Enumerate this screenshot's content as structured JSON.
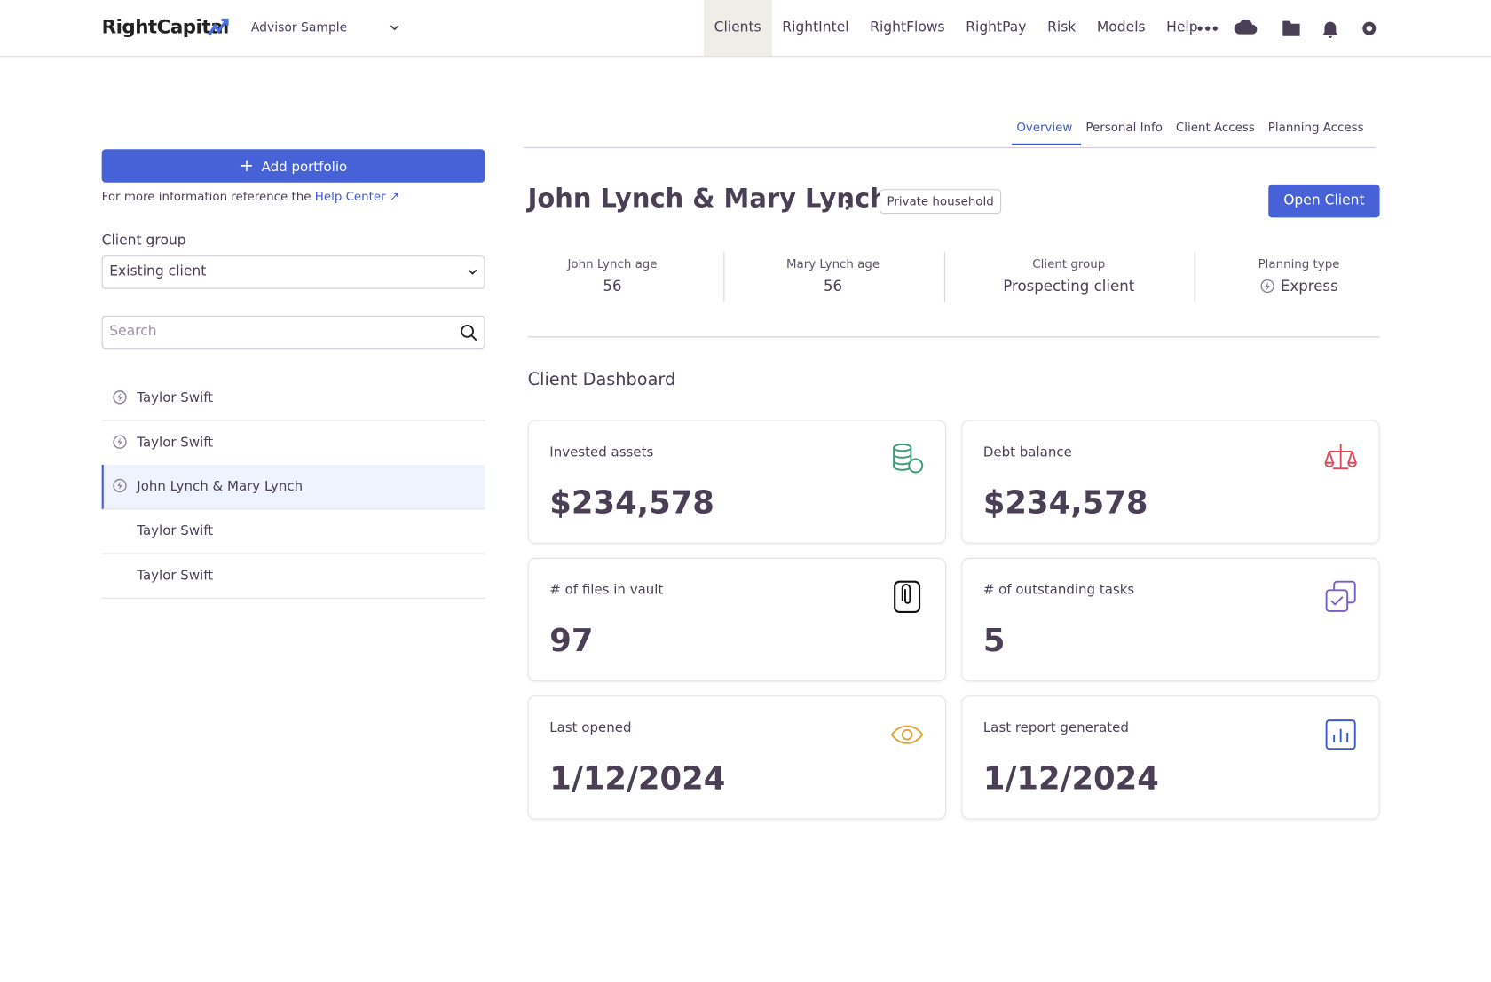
{
  "nav": {
    "logo": "RightCapital",
    "advisor": "Advisor Sample",
    "items": [
      "Clients",
      "RightIntel",
      "RightFlows",
      "RightPay",
      "Risk",
      "Models",
      "Help"
    ]
  },
  "tabs": [
    "Overview",
    "Personal Info",
    "Client Access",
    "Planning Access"
  ],
  "sidebar": {
    "add_button": "Add portfolio",
    "help_text": "For more information reference the",
    "help_link": "Help Center",
    "client_group_label": "Client group",
    "client_group_value": "Existing client",
    "search_placeholder": "Search",
    "clients": [
      "Taylor Swift",
      "Taylor Swift",
      "John Lynch & Mary Lynch",
      "Taylor Swift",
      "Taylor Swift"
    ]
  },
  "client": {
    "name": "John Lynch & Mary Lynch",
    "badge": "Private household",
    "open_button": "Open Client",
    "stats": [
      {
        "label": "John Lynch age",
        "value": 56
      },
      {
        "label": "Mary Lynch age",
        "value": 56
      },
      {
        "label": "Client group",
        "value": "Prospecting client"
      },
      {
        "label": "Planning type",
        "value": "Express"
      }
    ]
  },
  "dashboard": {
    "title": "Client Dashboard",
    "cards": [
      {
        "label": "Invested assets",
        "value": "$234,578"
      },
      {
        "label": "Debt balance",
        "value": "$234,578"
      },
      {
        "label": "# of files in vault",
        "value": 97
      },
      {
        "label": "# of outstanding tasks",
        "value": 5
      },
      {
        "label": "Last opened",
        "value": "1/12/2024"
      },
      {
        "label": "Last report generated",
        "value": "1/12/2024"
      }
    ]
  }
}
